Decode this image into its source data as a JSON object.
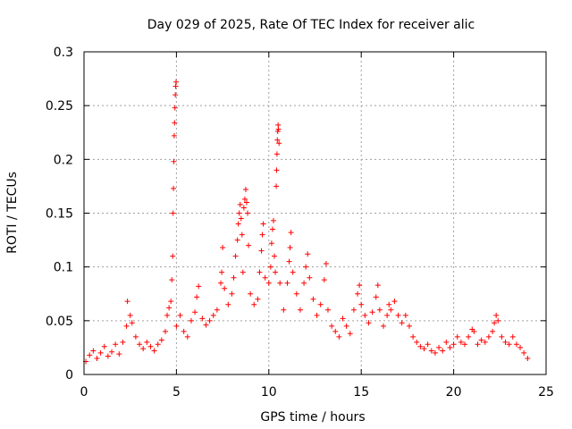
{
  "chart_data": {
    "type": "scatter",
    "title": "Day 029 of 2025, Rate Of TEC Index for receiver alic",
    "xlabel": "GPS time / hours",
    "ylabel": "ROTI / TECUs",
    "xlim": [
      0,
      25
    ],
    "ylim": [
      0,
      0.3
    ],
    "xticks": [
      0,
      5,
      10,
      15,
      20,
      25
    ],
    "yticks": [
      0,
      0.05,
      0.1,
      0.15,
      0.2,
      0.25,
      0.3
    ],
    "xtick_labels": [
      "0",
      "5",
      "10",
      "15",
      "20",
      "25"
    ],
    "ytick_labels": [
      "0",
      "0.05",
      "0.1",
      "0.15",
      "0.2",
      "0.25",
      "0.3"
    ],
    "grid": true,
    "legend": "none",
    "marker": "+",
    "color": "#ff0000",
    "series": [
      {
        "points": [
          [
            0.1,
            0.012
          ],
          [
            0.3,
            0.018
          ],
          [
            0.5,
            0.022
          ],
          [
            0.7,
            0.015
          ],
          [
            0.9,
            0.02
          ],
          [
            1.1,
            0.026
          ],
          [
            1.3,
            0.017
          ],
          [
            1.5,
            0.021
          ],
          [
            1.7,
            0.028
          ],
          [
            1.9,
            0.019
          ],
          [
            2.1,
            0.03
          ],
          [
            2.3,
            0.045
          ],
          [
            2.35,
            0.068
          ],
          [
            2.5,
            0.055
          ],
          [
            2.6,
            0.048
          ],
          [
            2.8,
            0.035
          ],
          [
            3.0,
            0.028
          ],
          [
            3.2,
            0.024
          ],
          [
            3.4,
            0.03
          ],
          [
            3.6,
            0.026
          ],
          [
            3.8,
            0.022
          ],
          [
            4.0,
            0.028
          ],
          [
            4.2,
            0.032
          ],
          [
            4.4,
            0.04
          ],
          [
            4.5,
            0.055
          ],
          [
            4.6,
            0.062
          ],
          [
            4.7,
            0.068
          ],
          [
            4.75,
            0.088
          ],
          [
            4.8,
            0.11
          ],
          [
            4.82,
            0.15
          ],
          [
            4.84,
            0.173
          ],
          [
            4.86,
            0.198
          ],
          [
            4.88,
            0.222
          ],
          [
            4.9,
            0.234
          ],
          [
            4.92,
            0.248
          ],
          [
            4.94,
            0.26
          ],
          [
            4.96,
            0.268
          ],
          [
            4.98,
            0.272
          ],
          [
            5.0,
            0.045
          ],
          [
            5.2,
            0.055
          ],
          [
            5.4,
            0.04
          ],
          [
            5.6,
            0.035
          ],
          [
            5.8,
            0.05
          ],
          [
            6.0,
            0.058
          ],
          [
            6.1,
            0.072
          ],
          [
            6.2,
            0.082
          ],
          [
            6.4,
            0.052
          ],
          [
            6.6,
            0.046
          ],
          [
            6.8,
            0.05
          ],
          [
            7.0,
            0.055
          ],
          [
            7.2,
            0.06
          ],
          [
            7.4,
            0.085
          ],
          [
            7.45,
            0.095
          ],
          [
            7.5,
            0.118
          ],
          [
            7.6,
            0.08
          ],
          [
            7.8,
            0.065
          ],
          [
            8.0,
            0.075
          ],
          [
            8.1,
            0.09
          ],
          [
            8.2,
            0.11
          ],
          [
            8.3,
            0.125
          ],
          [
            8.35,
            0.14
          ],
          [
            8.4,
            0.15
          ],
          [
            8.45,
            0.158
          ],
          [
            8.5,
            0.145
          ],
          [
            8.55,
            0.13
          ],
          [
            8.6,
            0.095
          ],
          [
            8.65,
            0.155
          ],
          [
            8.7,
            0.163
          ],
          [
            8.75,
            0.172
          ],
          [
            8.8,
            0.16
          ],
          [
            8.85,
            0.15
          ],
          [
            8.9,
            0.12
          ],
          [
            9.0,
            0.075
          ],
          [
            9.2,
            0.065
          ],
          [
            9.4,
            0.07
          ],
          [
            9.5,
            0.095
          ],
          [
            9.6,
            0.115
          ],
          [
            9.65,
            0.13
          ],
          [
            9.7,
            0.14
          ],
          [
            9.8,
            0.09
          ],
          [
            10.0,
            0.085
          ],
          [
            10.1,
            0.1
          ],
          [
            10.15,
            0.122
          ],
          [
            10.2,
            0.135
          ],
          [
            10.25,
            0.143
          ],
          [
            10.3,
            0.11
          ],
          [
            10.35,
            0.095
          ],
          [
            10.4,
            0.175
          ],
          [
            10.42,
            0.19
          ],
          [
            10.44,
            0.205
          ],
          [
            10.46,
            0.218
          ],
          [
            10.48,
            0.226
          ],
          [
            10.5,
            0.232
          ],
          [
            10.52,
            0.228
          ],
          [
            10.55,
            0.215
          ],
          [
            10.6,
            0.085
          ],
          [
            10.8,
            0.06
          ],
          [
            11.0,
            0.085
          ],
          [
            11.1,
            0.105
          ],
          [
            11.15,
            0.118
          ],
          [
            11.2,
            0.132
          ],
          [
            11.3,
            0.095
          ],
          [
            11.5,
            0.075
          ],
          [
            11.7,
            0.06
          ],
          [
            11.9,
            0.085
          ],
          [
            12.0,
            0.1
          ],
          [
            12.1,
            0.112
          ],
          [
            12.2,
            0.09
          ],
          [
            12.4,
            0.07
          ],
          [
            12.6,
            0.055
          ],
          [
            12.8,
            0.065
          ],
          [
            13.0,
            0.088
          ],
          [
            13.1,
            0.103
          ],
          [
            13.2,
            0.06
          ],
          [
            13.4,
            0.045
          ],
          [
            13.6,
            0.04
          ],
          [
            13.8,
            0.035
          ],
          [
            14.0,
            0.052
          ],
          [
            14.2,
            0.045
          ],
          [
            14.4,
            0.038
          ],
          [
            14.6,
            0.06
          ],
          [
            14.8,
            0.075
          ],
          [
            14.9,
            0.083
          ],
          [
            15.0,
            0.065
          ],
          [
            15.2,
            0.055
          ],
          [
            15.4,
            0.048
          ],
          [
            15.6,
            0.058
          ],
          [
            15.8,
            0.072
          ],
          [
            15.9,
            0.083
          ],
          [
            16.0,
            0.06
          ],
          [
            16.2,
            0.045
          ],
          [
            16.4,
            0.055
          ],
          [
            16.5,
            0.065
          ],
          [
            16.6,
            0.06
          ],
          [
            16.8,
            0.068
          ],
          [
            17.0,
            0.055
          ],
          [
            17.2,
            0.048
          ],
          [
            17.4,
            0.055
          ],
          [
            17.6,
            0.045
          ],
          [
            17.8,
            0.035
          ],
          [
            18.0,
            0.03
          ],
          [
            18.2,
            0.026
          ],
          [
            18.4,
            0.024
          ],
          [
            18.6,
            0.028
          ],
          [
            18.8,
            0.022
          ],
          [
            19.0,
            0.02
          ],
          [
            19.2,
            0.025
          ],
          [
            19.4,
            0.022
          ],
          [
            19.6,
            0.03
          ],
          [
            19.8,
            0.025
          ],
          [
            20.0,
            0.028
          ],
          [
            20.2,
            0.035
          ],
          [
            20.4,
            0.03
          ],
          [
            20.6,
            0.028
          ],
          [
            20.8,
            0.035
          ],
          [
            21.0,
            0.042
          ],
          [
            21.1,
            0.04
          ],
          [
            21.3,
            0.028
          ],
          [
            21.5,
            0.032
          ],
          [
            21.7,
            0.03
          ],
          [
            21.9,
            0.035
          ],
          [
            22.1,
            0.04
          ],
          [
            22.2,
            0.048
          ],
          [
            22.3,
            0.055
          ],
          [
            22.4,
            0.05
          ],
          [
            22.6,
            0.035
          ],
          [
            22.8,
            0.03
          ],
          [
            23.0,
            0.028
          ],
          [
            23.2,
            0.035
          ],
          [
            23.4,
            0.028
          ],
          [
            23.6,
            0.025
          ],
          [
            23.8,
            0.02
          ],
          [
            24.0,
            0.015
          ]
        ]
      }
    ]
  }
}
